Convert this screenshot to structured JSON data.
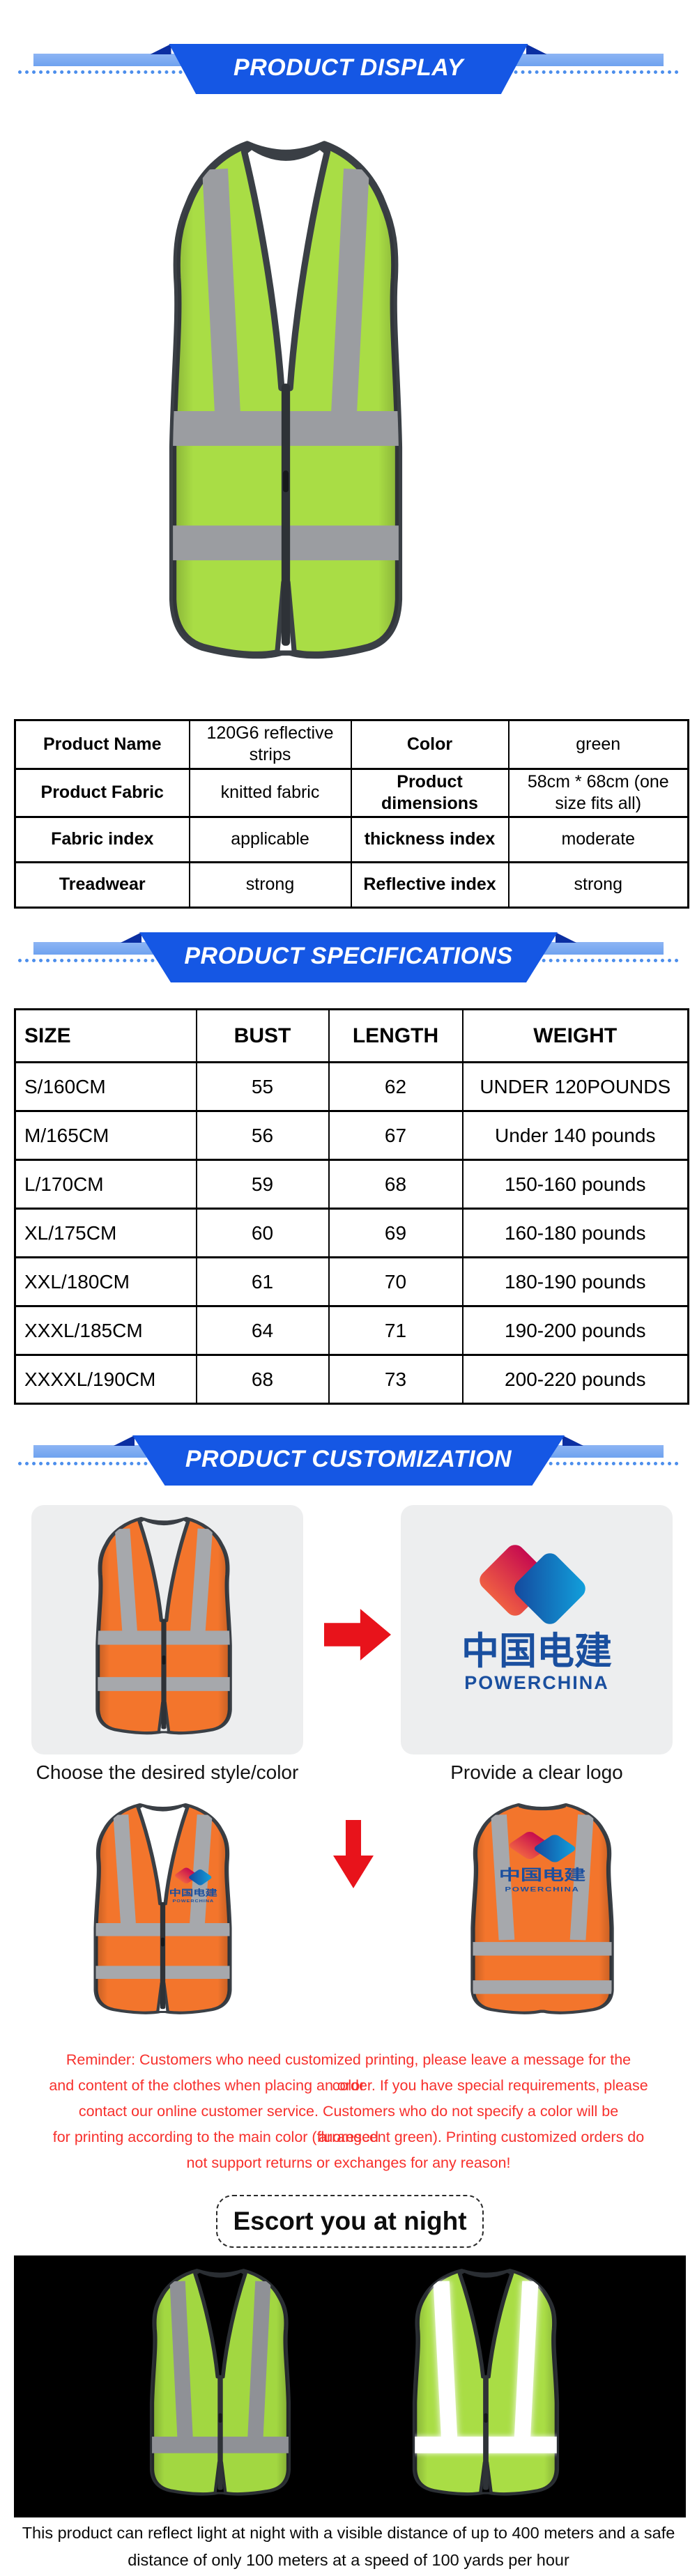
{
  "colors": {
    "banner_blue": "#1557e4",
    "banner_fold": "#0b2fa2",
    "banner_bar_light": "#8db5f4",
    "banner_dash": "#4c8eec",
    "vest_green": "#a9dd45",
    "vest_green_night": "#a2d741",
    "vest_orange": "#f3752c",
    "vest_trim": "#3a3f45",
    "strip_gray": "#9b9da1",
    "strip_white_glow": "#ffffff",
    "arrow_red": "#e8131b",
    "reminder_red": "#f7302c",
    "card_gray": "#edeeef",
    "logo_text_blue": "#1a4f9f",
    "logo_crimson_top": "#c60b4f",
    "logo_crimson_bottom": "#ef5f43",
    "logo_blue_top": "#11a4df",
    "logo_blue_bottom": "#14459b",
    "night_background": "#000000"
  },
  "banners": {
    "display": "PRODUCT DISPLAY",
    "specifications": "PRODUCT SPECIFICATIONS",
    "customization": "PRODUCT CUSTOMIZATION"
  },
  "info_table": {
    "rows": [
      {
        "label1": "Product Name",
        "value1": "120G6 reflective strips",
        "label2": "Color",
        "value2": "green"
      },
      {
        "label1": "Product Fabric",
        "value1": "knitted fabric",
        "label2": "Product dimensions",
        "value2": "58cm * 68cm (one size fits all)"
      },
      {
        "label1": "Fabric index",
        "value1": "applicable",
        "label2": "thickness index",
        "value2": "moderate"
      },
      {
        "label1": "Treadwear",
        "value1": "strong",
        "label2": "Reflective index",
        "value2": "strong"
      }
    ]
  },
  "size_table": {
    "headers": [
      "SIZE",
      "BUST",
      "LENGTH",
      "WEIGHT"
    ],
    "rows": [
      [
        "S/160CM",
        "55",
        "62",
        "UNDER 120POUNDS"
      ],
      [
        "M/165CM",
        "56",
        "67",
        "Under 140 pounds"
      ],
      [
        "L/170CM",
        "59",
        "68",
        "150-160 pounds"
      ],
      [
        "XL/175CM",
        "60",
        "69",
        "160-180 pounds"
      ],
      [
        "XXL/180CM",
        "61",
        "70",
        "180-190 pounds"
      ],
      [
        "XXXL/185CM",
        "64",
        "71",
        "190-200 pounds"
      ],
      [
        "XXXXL/190CM",
        "68",
        "73",
        "200-220 pounds"
      ]
    ]
  },
  "customization": {
    "caption_left": "Choose the desired style/color",
    "caption_right": "Provide a clear logo",
    "logo": {
      "cn": "中国电建",
      "en": "POWERCHINA"
    }
  },
  "reminder_lines": [
    "Reminder: Customers who need customized printing, please leave a message for the color",
    "and content of the clothes when placing an order. If you have special requirements, please",
    "contact our online customer service. Customers who do not specify a color will be arranged",
    "for printing according to the main color (fluorescent green). Printing customized orders do",
    "not support returns or exchanges for any reason!"
  ],
  "escort_label": "Escort you at night",
  "footer_lines": [
    "This product can reflect light at night with a visible distance of up to 400 meters and a safe",
    "distance of only 100 meters at a speed of 100 yards per hour"
  ]
}
